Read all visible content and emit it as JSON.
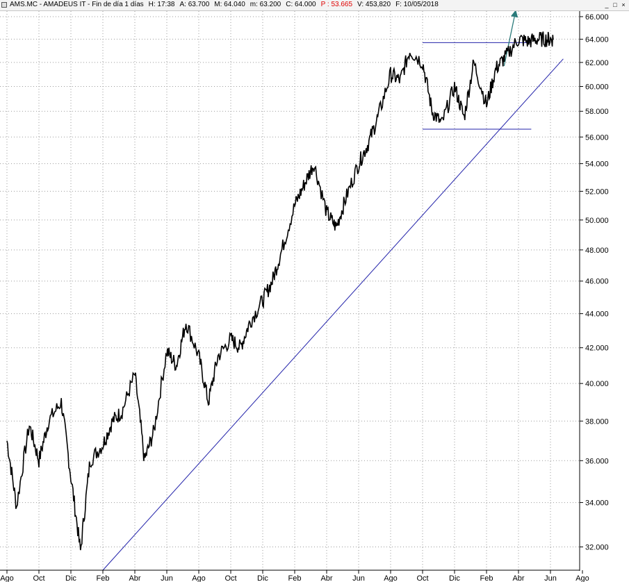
{
  "window": {
    "title_parts": [
      "AMS.MC - AMADEUS IT - Fin de día 1 días",
      "H: 17:38",
      "A: 63.700",
      "M: 64.040",
      "m: 63.200",
      "C: 64.000",
      "P : 53.665",
      "V: 453,820",
      "F: 10/05/2018"
    ],
    "minimize_label": "_",
    "restore_label": "□",
    "close_label": "×"
  },
  "colors": {
    "price": "#000000",
    "trendline": "#2222aa",
    "arrow": "#2a7a7a",
    "grid": "#9a9a9a",
    "highlight_value": "#e00000"
  },
  "chart_data": {
    "type": "line",
    "title": "AMS.MC - AMADEUS IT",
    "y_axis_position": "right",
    "y_scale": "log",
    "ylim": [
      31.0,
      66.5
    ],
    "y_ticks": [
      "32.000",
      "34.000",
      "36.000",
      "38.000",
      "40.000",
      "42.000",
      "44.000",
      "46.000",
      "48.000",
      "50.000",
      "52.000",
      "54.000",
      "56.000",
      "58.000",
      "60.000",
      "62.000",
      "64.000",
      "66.000"
    ],
    "x_ticks": [
      "Ago",
      "Oct",
      "Dic",
      "Feb",
      "Abr",
      "Jun",
      "Ago",
      "Oct",
      "Dic",
      "Feb",
      "Abr",
      "Jun",
      "Ago",
      "Oct",
      "Dic",
      "Feb",
      "Abr",
      "Jun",
      "Ago"
    ],
    "grid": true,
    "series": [
      {
        "x": [
          0,
          0.3,
          0.7,
          1.0,
          1.3,
          1.7,
          2.0,
          2.3,
          2.6,
          3.0,
          3.3,
          3.6,
          4.0,
          4.3,
          4.6,
          5.0,
          5.3,
          5.6,
          6.0,
          6.3,
          6.6,
          7.0,
          7.3,
          7.6,
          8.0,
          8.3,
          8.6,
          9.0,
          9.3,
          9.6,
          10.0,
          10.3,
          10.6,
          11.0,
          11.3,
          11.6,
          12.0,
          12.3,
          12.6,
          13.0,
          13.3,
          13.6,
          14.0,
          14.3,
          14.6,
          15.0,
          15.3,
          15.6,
          16.0,
          16.3,
          16.6,
          16.9,
          17.1
        ],
        "values": [
          37.0,
          33.8,
          37.8,
          36.0,
          38.0,
          39.0,
          35.2,
          31.8,
          36.0,
          36.8,
          38.0,
          38.5,
          40.5,
          36.0,
          37.5,
          41.8,
          41.0,
          43.5,
          41.5,
          39.0,
          41.5,
          42.5,
          42.0,
          43.5,
          44.8,
          46.0,
          48.0,
          51.0,
          52.5,
          54.0,
          50.5,
          49.5,
          51.5,
          54.0,
          55.5,
          57.5,
          61.0,
          60.5,
          63.0,
          62.0,
          58.0,
          57.0,
          60.0,
          57.5,
          62.0,
          58.5,
          61.5,
          62.5,
          64.0,
          63.8,
          64.0,
          64.0,
          64.0
        ]
      }
    ],
    "annotations": [
      {
        "type": "trendline",
        "x": [
          3.0,
          17.4
        ],
        "values": [
          31.0,
          62.3
        ]
      },
      {
        "type": "horizontal",
        "x": [
          13.0,
          16.4
        ],
        "value": 63.7
      },
      {
        "type": "horizontal",
        "x": [
          13.0,
          16.4
        ],
        "value": 56.6
      },
      {
        "type": "arrow",
        "x": [
          15.55,
          15.9
        ],
        "values": [
          61.7,
          67.0
        ]
      }
    ]
  }
}
